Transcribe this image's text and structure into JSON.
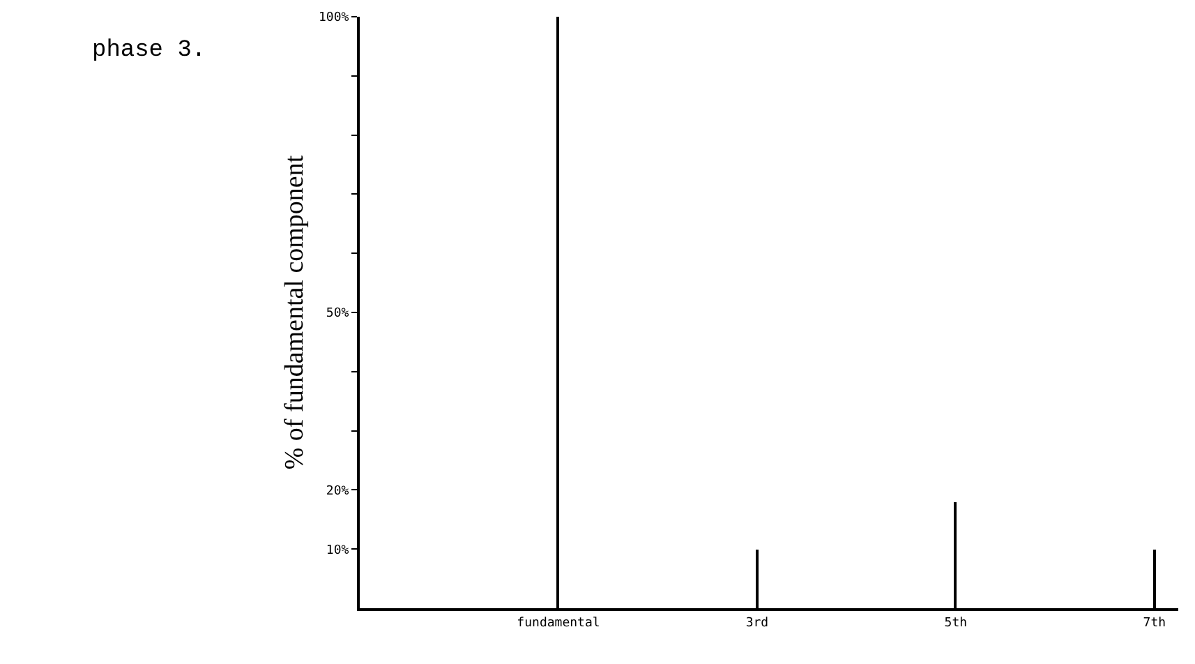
{
  "chart_data": {
    "type": "bar",
    "ylabel": "% of fundamental component",
    "annotations": [
      "phase 3."
    ],
    "categories": [
      "fundamental",
      "3rd",
      "5th",
      "7th"
    ],
    "values": [
      100,
      10,
      18,
      10
    ],
    "color": "#000000",
    "ylim": [
      0,
      100
    ],
    "yticks": [
      {
        "value": 10,
        "label": "10%"
      },
      {
        "value": 20,
        "label": "20%"
      },
      {
        "value": 30,
        "label": null
      },
      {
        "value": 40,
        "label": null
      },
      {
        "value": 50,
        "label": "50%"
      },
      {
        "value": 60,
        "label": null
      },
      {
        "value": 70,
        "label": null
      },
      {
        "value": 80,
        "label": null
      },
      {
        "value": 90,
        "label": null
      },
      {
        "value": 100,
        "label": "100%"
      }
    ]
  }
}
